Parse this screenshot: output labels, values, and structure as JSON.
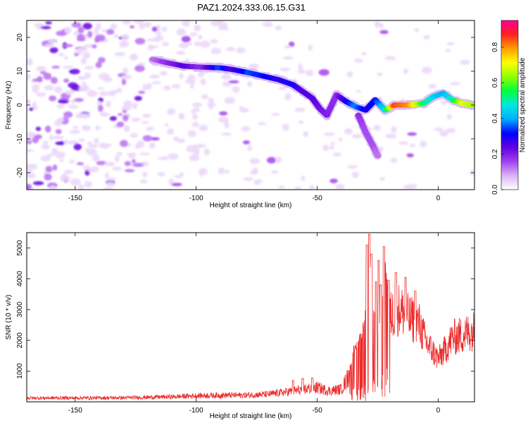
{
  "title": "PAZ1.2024.333.06.15.G31",
  "chart_data": [
    {
      "type": "heatmap",
      "xlabel": "Height of straight line (km)",
      "ylabel": "Frequency (Hz)",
      "xlim": [
        -170,
        15
      ],
      "ylim": [
        -25,
        25
      ],
      "xticks": [
        -150,
        -100,
        -50,
        0
      ],
      "yticks": [
        -20,
        -10,
        0,
        10,
        20
      ],
      "colorbar": {
        "label": "Normalized spectral amplitude",
        "range": [
          0,
          0.95
        ],
        "ticks": [
          0.0,
          0.2,
          0.4,
          0.6,
          0.8
        ],
        "colors": [
          "#ffffff",
          "#d9b3f5",
          "#a040f0",
          "#6000e0",
          "#0000ff",
          "#00b0ff",
          "#00e8e0",
          "#00ff40",
          "#90ff00",
          "#ffff00",
          "#ffa000",
          "#ff2020",
          "#ff0090"
        ]
      },
      "ridge": [
        {
          "x": -118,
          "y": 13.5,
          "a": 0.12
        },
        {
          "x": -112,
          "y": 12.5,
          "a": 0.18
        },
        {
          "x": -105,
          "y": 11.5,
          "a": 0.25
        },
        {
          "x": -98,
          "y": 11.2,
          "a": 0.18
        },
        {
          "x": -90,
          "y": 11.0,
          "a": 0.35
        },
        {
          "x": -85,
          "y": 10.5,
          "a": 0.25
        },
        {
          "x": -78,
          "y": 9.5,
          "a": 0.35
        },
        {
          "x": -72,
          "y": 8.5,
          "a": 0.32
        },
        {
          "x": -66,
          "y": 7.5,
          "a": 0.28
        },
        {
          "x": -60,
          "y": 6.0,
          "a": 0.3
        },
        {
          "x": -56,
          "y": 4.0,
          "a": 0.25
        },
        {
          "x": -52,
          "y": 2.0,
          "a": 0.25
        },
        {
          "x": -49,
          "y": -1.0,
          "a": 0.22
        },
        {
          "x": -46,
          "y": -3.0,
          "a": 0.2
        },
        {
          "x": -42,
          "y": 3.0,
          "a": 0.18
        },
        {
          "x": -38,
          "y": 1.0,
          "a": 0.3
        },
        {
          "x": -34,
          "y": -0.5,
          "a": 0.38
        },
        {
          "x": -30,
          "y": -1.5,
          "a": 0.3
        },
        {
          "x": -26,
          "y": 1.5,
          "a": 0.32
        },
        {
          "x": -22,
          "y": -1.5,
          "a": 0.45
        },
        {
          "x": -18,
          "y": 0.0,
          "a": 0.85
        },
        {
          "x": -12,
          "y": 0.0,
          "a": 0.8
        },
        {
          "x": -6,
          "y": 0.5,
          "a": 0.55
        },
        {
          "x": -2,
          "y": 2.5,
          "a": 0.45
        },
        {
          "x": 2,
          "y": 3.5,
          "a": 0.4
        },
        {
          "x": 6,
          "y": 1.5,
          "a": 0.5
        },
        {
          "x": 10,
          "y": 0.5,
          "a": 0.7
        },
        {
          "x": 14,
          "y": 0.0,
          "a": 0.65
        }
      ],
      "branch": [
        {
          "x": -33,
          "y": -3.0,
          "a": 0.18
        },
        {
          "x": -30,
          "y": -8.0,
          "a": 0.15
        },
        {
          "x": -27,
          "y": -12.0,
          "a": 0.15
        },
        {
          "x": -25,
          "y": -15.0,
          "a": 0.12
        }
      ]
    },
    {
      "type": "line",
      "xlabel": "Height of straight line (km)",
      "ylabel": "SNR (10 * v/v)",
      "xlim": [
        -170,
        15
      ],
      "ylim": [
        0,
        5500
      ],
      "xticks": [
        -150,
        -100,
        -50,
        0
      ],
      "yticks": [
        1000,
        2000,
        3000,
        4000,
        5000
      ],
      "color": "#ee2a2a",
      "envelope": [
        [
          -170,
          150
        ],
        [
          -130,
          160
        ],
        [
          -110,
          200
        ],
        [
          -100,
          240
        ],
        [
          -90,
          260
        ],
        [
          -80,
          260
        ],
        [
          -70,
          300
        ],
        [
          -60,
          420
        ],
        [
          -55,
          500
        ],
        [
          -50,
          560
        ],
        [
          -45,
          430
        ],
        [
          -40,
          500
        ],
        [
          -37,
          1000
        ],
        [
          -35,
          1800
        ],
        [
          -33,
          2100
        ],
        [
          -31,
          2600
        ],
        [
          -30,
          3500
        ],
        [
          -29,
          4600
        ],
        [
          -28.5,
          5450
        ],
        [
          -27,
          3200
        ],
        [
          -25,
          2500
        ],
        [
          -23,
          3700
        ],
        [
          -22,
          4800
        ],
        [
          -20,
          3600
        ],
        [
          -16,
          3900
        ],
        [
          -12,
          3500
        ],
        [
          -8,
          3300
        ],
        [
          -5,
          2500
        ],
        [
          0,
          1800
        ],
        [
          3,
          2200
        ],
        [
          6,
          2700
        ],
        [
          10,
          2800
        ],
        [
          15,
          3000
        ]
      ],
      "spikes": [
        [
          -29.5,
          5100
        ],
        [
          -28.5,
          5450
        ],
        [
          -27.6,
          4800
        ],
        [
          -25.7,
          3900
        ],
        [
          -24.6,
          4600
        ],
        [
          -23.8,
          3800
        ],
        [
          -22.4,
          5050
        ],
        [
          -20.5,
          3950
        ],
        [
          -17.5,
          4200
        ],
        [
          -13.5,
          4050
        ],
        [
          -9.5,
          3600
        ],
        [
          -56,
          760
        ],
        [
          -52,
          780
        ],
        [
          -60,
          700
        ]
      ]
    }
  ]
}
